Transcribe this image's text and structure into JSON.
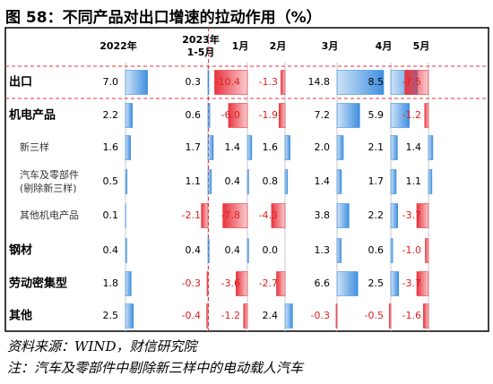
{
  "title": "图 58：不同产品对出口增速的拉动作用（%）",
  "source": "资料来源：WIND，财信研究院",
  "note": "注：汽车及零部件中剔除新三样中的电动载人汽车",
  "colors": {
    "positive": "#3f8fe0",
    "negative": "#e8333d",
    "positive_text": "#000000",
    "negative_text": "#e02020",
    "frame": "#000000",
    "highlight_dash": "#e8333d"
  },
  "chart_data": {
    "type": "table",
    "columns": [
      "2022年",
      "2023年\n1-5月",
      "1月",
      "2月",
      "3月",
      "4月",
      "5月"
    ],
    "rows": [
      {
        "label": "出口",
        "bold": true,
        "values": [
          7.0,
          0.3,
          -10.4,
          -1.3,
          14.8,
          8.5,
          -7.5
        ],
        "display": [
          "7.0",
          "0.3",
          "-10.4",
          "-1.3",
          "14.8",
          "8.5",
          "-7.5"
        ]
      },
      {
        "label": "机电产品",
        "bold": true,
        "values": [
          2.2,
          0.6,
          -6.0,
          -1.9,
          7.2,
          5.9,
          -1.2
        ],
        "display": [
          "2.2",
          "0.6",
          "-6.0",
          "-1.9",
          "7.2",
          "5.9",
          "-1.2"
        ]
      },
      {
        "label": "新三样",
        "bold": false,
        "values": [
          1.6,
          1.7,
          1.4,
          1.6,
          2.0,
          2.1,
          1.4
        ],
        "display": [
          "1.6",
          "1.7",
          "1.4",
          "1.6",
          "2.0",
          "2.1",
          "1.4"
        ]
      },
      {
        "label": "汽车及零部件\n(剔除新三样)",
        "bold": false,
        "values": [
          0.5,
          1.1,
          0.4,
          0.8,
          1.4,
          1.7,
          1.1
        ],
        "display": [
          "0.5",
          "1.1",
          "0.4",
          "0.8",
          "1.4",
          "1.7",
          "1.1"
        ]
      },
      {
        "label": "其他机电产品",
        "bold": false,
        "values": [
          0.1,
          -2.1,
          -7.8,
          -4.3,
          3.8,
          2.2,
          -3.7
        ],
        "display": [
          "0.1",
          "-2.1",
          "-7.8",
          "-4.3",
          "3.8",
          "2.2",
          "-3.7"
        ]
      },
      {
        "label": "钢材",
        "bold": true,
        "values": [
          0.4,
          0.4,
          0.4,
          0.0,
          1.3,
          0.6,
          -1.0
        ],
        "display": [
          "0.4",
          "0.4",
          "0.4",
          "0.0",
          "1.3",
          "0.6",
          "-1.0"
        ]
      },
      {
        "label": "劳动密集型",
        "bold": true,
        "values": [
          1.8,
          -0.3,
          -3.6,
          -2.7,
          6.6,
          2.5,
          -3.7
        ],
        "display": [
          "1.8",
          "-0.3",
          "-3.6",
          "-2.7",
          "6.6",
          "2.5",
          "-3.7"
        ]
      },
      {
        "label": "其他",
        "bold": true,
        "values": [
          2.5,
          -0.4,
          -1.2,
          2.4,
          -0.3,
          -0.5,
          -1.6
        ],
        "display": [
          "2.5",
          "-0.4",
          "-1.2",
          "2.4",
          "-0.3",
          "-0.5",
          "-1.6"
        ]
      }
    ],
    "bar_scale_max": 14.8,
    "highlighted_row": "出口",
    "grid": false
  }
}
